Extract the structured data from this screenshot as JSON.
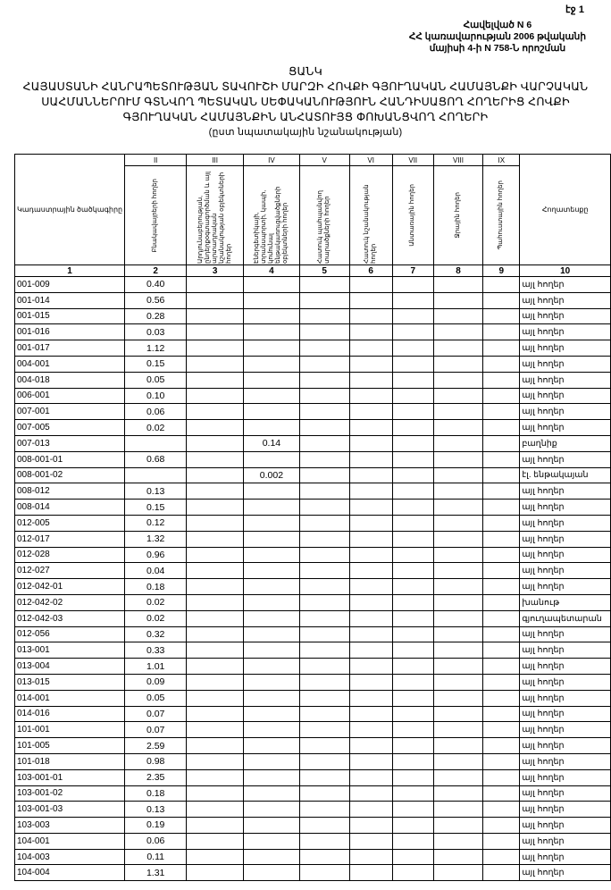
{
  "page_number": "էջ 1",
  "annex": {
    "line1": "Հավելված N 6",
    "line2": "ՀՀ կառավարության 2006 թվականի",
    "line3": "մայիսի 4-ի N 758-Ն որոշման"
  },
  "title": {
    "line1": "ՑԱՆԿ",
    "line2": "ՀԱՅԱՍՏԱՆԻ ՀԱՆՐԱՊԵՏՈՒԹՅԱՆ ՏԱՎՈՒՇԻ ՄԱՐԶԻ ՀՈՎՔԻ ԳՅՈՒՂԱԿԱՆ ՀԱՄԱՅՆՔԻ ՎԱՐՉԱԿԱՆ",
    "line3": "ՍԱՀՄԱՆՆԵՐՈՒՄ ԳՏՆՎՈՂ ՊԵՏԱԿԱՆ ՍԵՓԱԿԱՆՈՒԹՅՈՒՆ ՀԱՆԴԻՍԱՑՈՂ ՀՈՂԵՐԻՑ ՀՈՎՔԻ",
    "line4": "ԳՅՈՒՂԱԿԱՆ ՀԱՄԱՅՆՔԻՆ ԱՆՀԱՏՈՒՅՑ ՓՈԽԱՆՑՎՈՂ ՀՈՂԵՐԻ",
    "line5": "(ըստ նպատակային նշանակության)"
  },
  "table": {
    "roman": [
      "",
      "II",
      "III",
      "IV",
      "V",
      "VI",
      "VII",
      "VIII",
      "IX",
      ""
    ],
    "headers": [
      "Կադաստրային ծածկագիրը",
      "Բնակավայրերի հողեր",
      "Արդյունաբերության, ընդերքօգտագործման և այլ արտադրական նշանակության օբյեկտների հողեր",
      "Էներգետիկայի, տրանսպորտի, կապի, կոմունալ ենթակառուցվածքների օբյեկտների հողեր",
      "Հատուկ պահպանվող տարածքների հողեր",
      "Հատուկ նշանակության հողեր",
      "Անտառային հողեր",
      "Ջրային հողեր",
      "Պահուստային հողեր",
      "Հողատեսքը"
    ],
    "numbers": [
      "1",
      "2",
      "3",
      "4",
      "5",
      "6",
      "7",
      "8",
      "9",
      "10"
    ],
    "rows": [
      [
        "001-009",
        "0.40",
        "",
        "",
        "",
        "",
        "",
        "",
        "",
        "այլ հողեր"
      ],
      [
        "001-014",
        "0.56",
        "",
        "",
        "",
        "",
        "",
        "",
        "",
        "այլ հողեր"
      ],
      [
        "001-015",
        "0.28",
        "",
        "",
        "",
        "",
        "",
        "",
        "",
        "այլ հողեր"
      ],
      [
        "001-016",
        "0.03",
        "",
        "",
        "",
        "",
        "",
        "",
        "",
        "այլ հողեր"
      ],
      [
        "001-017",
        "1.12",
        "",
        "",
        "",
        "",
        "",
        "",
        "",
        "այլ հողեր"
      ],
      [
        "004-001",
        "0.15",
        "",
        "",
        "",
        "",
        "",
        "",
        "",
        "այլ հողեր"
      ],
      [
        "004-018",
        "0.05",
        "",
        "",
        "",
        "",
        "",
        "",
        "",
        "այլ հողեր"
      ],
      [
        "006-001",
        "0.10",
        "",
        "",
        "",
        "",
        "",
        "",
        "",
        "այլ հողեր"
      ],
      [
        "007-001",
        "0.06",
        "",
        "",
        "",
        "",
        "",
        "",
        "",
        "այլ հողեր"
      ],
      [
        "007-005",
        "0.02",
        "",
        "",
        "",
        "",
        "",
        "",
        "",
        "այլ հողեր"
      ],
      [
        "007-013",
        "",
        "",
        "0.14",
        "",
        "",
        "",
        "",
        "",
        "բաղնիք"
      ],
      [
        "008-001-01",
        "0.68",
        "",
        "",
        "",
        "",
        "",
        "",
        "",
        "այլ հողեր"
      ],
      [
        "008-001-02",
        "",
        "",
        "0.002",
        "",
        "",
        "",
        "",
        "",
        "էլ. ենթակայան"
      ],
      [
        "008-012",
        "0.13",
        "",
        "",
        "",
        "",
        "",
        "",
        "",
        "այլ հողեր"
      ],
      [
        "008-014",
        "0.15",
        "",
        "",
        "",
        "",
        "",
        "",
        "",
        "այլ հողեր"
      ],
      [
        "012-005",
        "0.12",
        "",
        "",
        "",
        "",
        "",
        "",
        "",
        "այլ հողեր"
      ],
      [
        "012-017",
        "1.32",
        "",
        "",
        "",
        "",
        "",
        "",
        "",
        "այլ հողեր"
      ],
      [
        "012-028",
        "0.96",
        "",
        "",
        "",
        "",
        "",
        "",
        "",
        "այլ հողեր"
      ],
      [
        "012-027",
        "0.04",
        "",
        "",
        "",
        "",
        "",
        "",
        "",
        "այլ հողեր"
      ],
      [
        "012-042-01",
        "0.18",
        "",
        "",
        "",
        "",
        "",
        "",
        "",
        "այլ հողեր"
      ],
      [
        "012-042-02",
        "0.02",
        "",
        "",
        "",
        "",
        "",
        "",
        "",
        "խանութ"
      ],
      [
        "012-042-03",
        "0.02",
        "",
        "",
        "",
        "",
        "",
        "",
        "",
        "գյուղապետարան"
      ],
      [
        "012-056",
        "0.32",
        "",
        "",
        "",
        "",
        "",
        "",
        "",
        "այլ հողեր"
      ],
      [
        "013-001",
        "0.33",
        "",
        "",
        "",
        "",
        "",
        "",
        "",
        "այլ հողեր"
      ],
      [
        "013-004",
        "1.01",
        "",
        "",
        "",
        "",
        "",
        "",
        "",
        "այլ հողեր"
      ],
      [
        "013-015",
        "0.09",
        "",
        "",
        "",
        "",
        "",
        "",
        "",
        "այլ հողեր"
      ],
      [
        "014-001",
        "0.05",
        "",
        "",
        "",
        "",
        "",
        "",
        "",
        "այլ հողեր"
      ],
      [
        "014-016",
        "0.07",
        "",
        "",
        "",
        "",
        "",
        "",
        "",
        "այլ հողեր"
      ],
      [
        "101-001",
        "0.07",
        "",
        "",
        "",
        "",
        "",
        "",
        "",
        "այլ հողեր"
      ],
      [
        "101-005",
        "2.59",
        "",
        "",
        "",
        "",
        "",
        "",
        "",
        "այլ հողեր"
      ],
      [
        "101-018",
        "0.98",
        "",
        "",
        "",
        "",
        "",
        "",
        "",
        "այլ հողեր"
      ],
      [
        "103-001-01",
        "2.35",
        "",
        "",
        "",
        "",
        "",
        "",
        "",
        "այլ հողեր"
      ],
      [
        "103-001-02",
        "0.18",
        "",
        "",
        "",
        "",
        "",
        "",
        "",
        "այլ հողեր"
      ],
      [
        "103-001-03",
        "0.13",
        "",
        "",
        "",
        "",
        "",
        "",
        "",
        "այլ հողեր"
      ],
      [
        "103-003",
        "0.19",
        "",
        "",
        "",
        "",
        "",
        "",
        "",
        "այլ հողեր"
      ],
      [
        "104-001",
        "0.06",
        "",
        "",
        "",
        "",
        "",
        "",
        "",
        "այլ հողեր"
      ],
      [
        "104-003",
        "0.11",
        "",
        "",
        "",
        "",
        "",
        "",
        "",
        "այլ հողեր"
      ],
      [
        "104-004",
        "1.31",
        "",
        "",
        "",
        "",
        "",
        "",
        "",
        "այլ հողեր"
      ]
    ]
  }
}
